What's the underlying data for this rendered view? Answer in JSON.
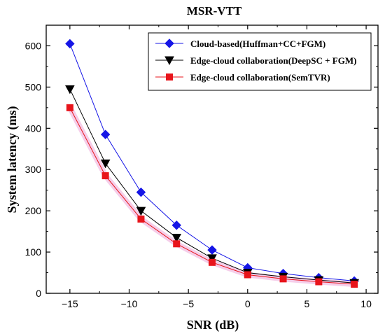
{
  "chart_data": {
    "type": "line",
    "title": "MSR-VTT",
    "xlabel": "SNR (dB)",
    "ylabel": "System latency (ms)",
    "xlim": [
      -17,
      11
    ],
    "ylim": [
      0,
      650
    ],
    "xticks": [
      -15,
      -10,
      -5,
      0,
      5,
      10
    ],
    "xtick_labels": [
      "−15",
      "−10",
      "−5",
      "0",
      "5",
      "10"
    ],
    "yticks": [
      0,
      100,
      200,
      300,
      400,
      500,
      600
    ],
    "ytick_labels": [
      "0",
      "100",
      "200",
      "300",
      "400",
      "500",
      "600"
    ],
    "grid": false,
    "legend_position": "top-right",
    "x": [
      -15,
      -12,
      -9,
      -6,
      -3,
      0,
      3,
      6,
      9
    ],
    "series": [
      {
        "name": "Cloud-based(Huffman+CC+FGM)",
        "color": "#1515e6",
        "marker": "diamond",
        "values": [
          605,
          385,
          245,
          165,
          105,
          62,
          48,
          38,
          30
        ]
      },
      {
        "name": "Edge-cloud collaboration(DeepSC + FGM)",
        "color": "#000000",
        "marker": "triangle-down",
        "values": [
          495,
          315,
          200,
          135,
          85,
          50,
          40,
          32,
          25
        ]
      },
      {
        "name": "Edge-cloud collaboration(SemTVR)",
        "color": "#e8141b",
        "marker": "square",
        "values": [
          450,
          285,
          180,
          120,
          75,
          45,
          35,
          28,
          22
        ]
      }
    ]
  }
}
